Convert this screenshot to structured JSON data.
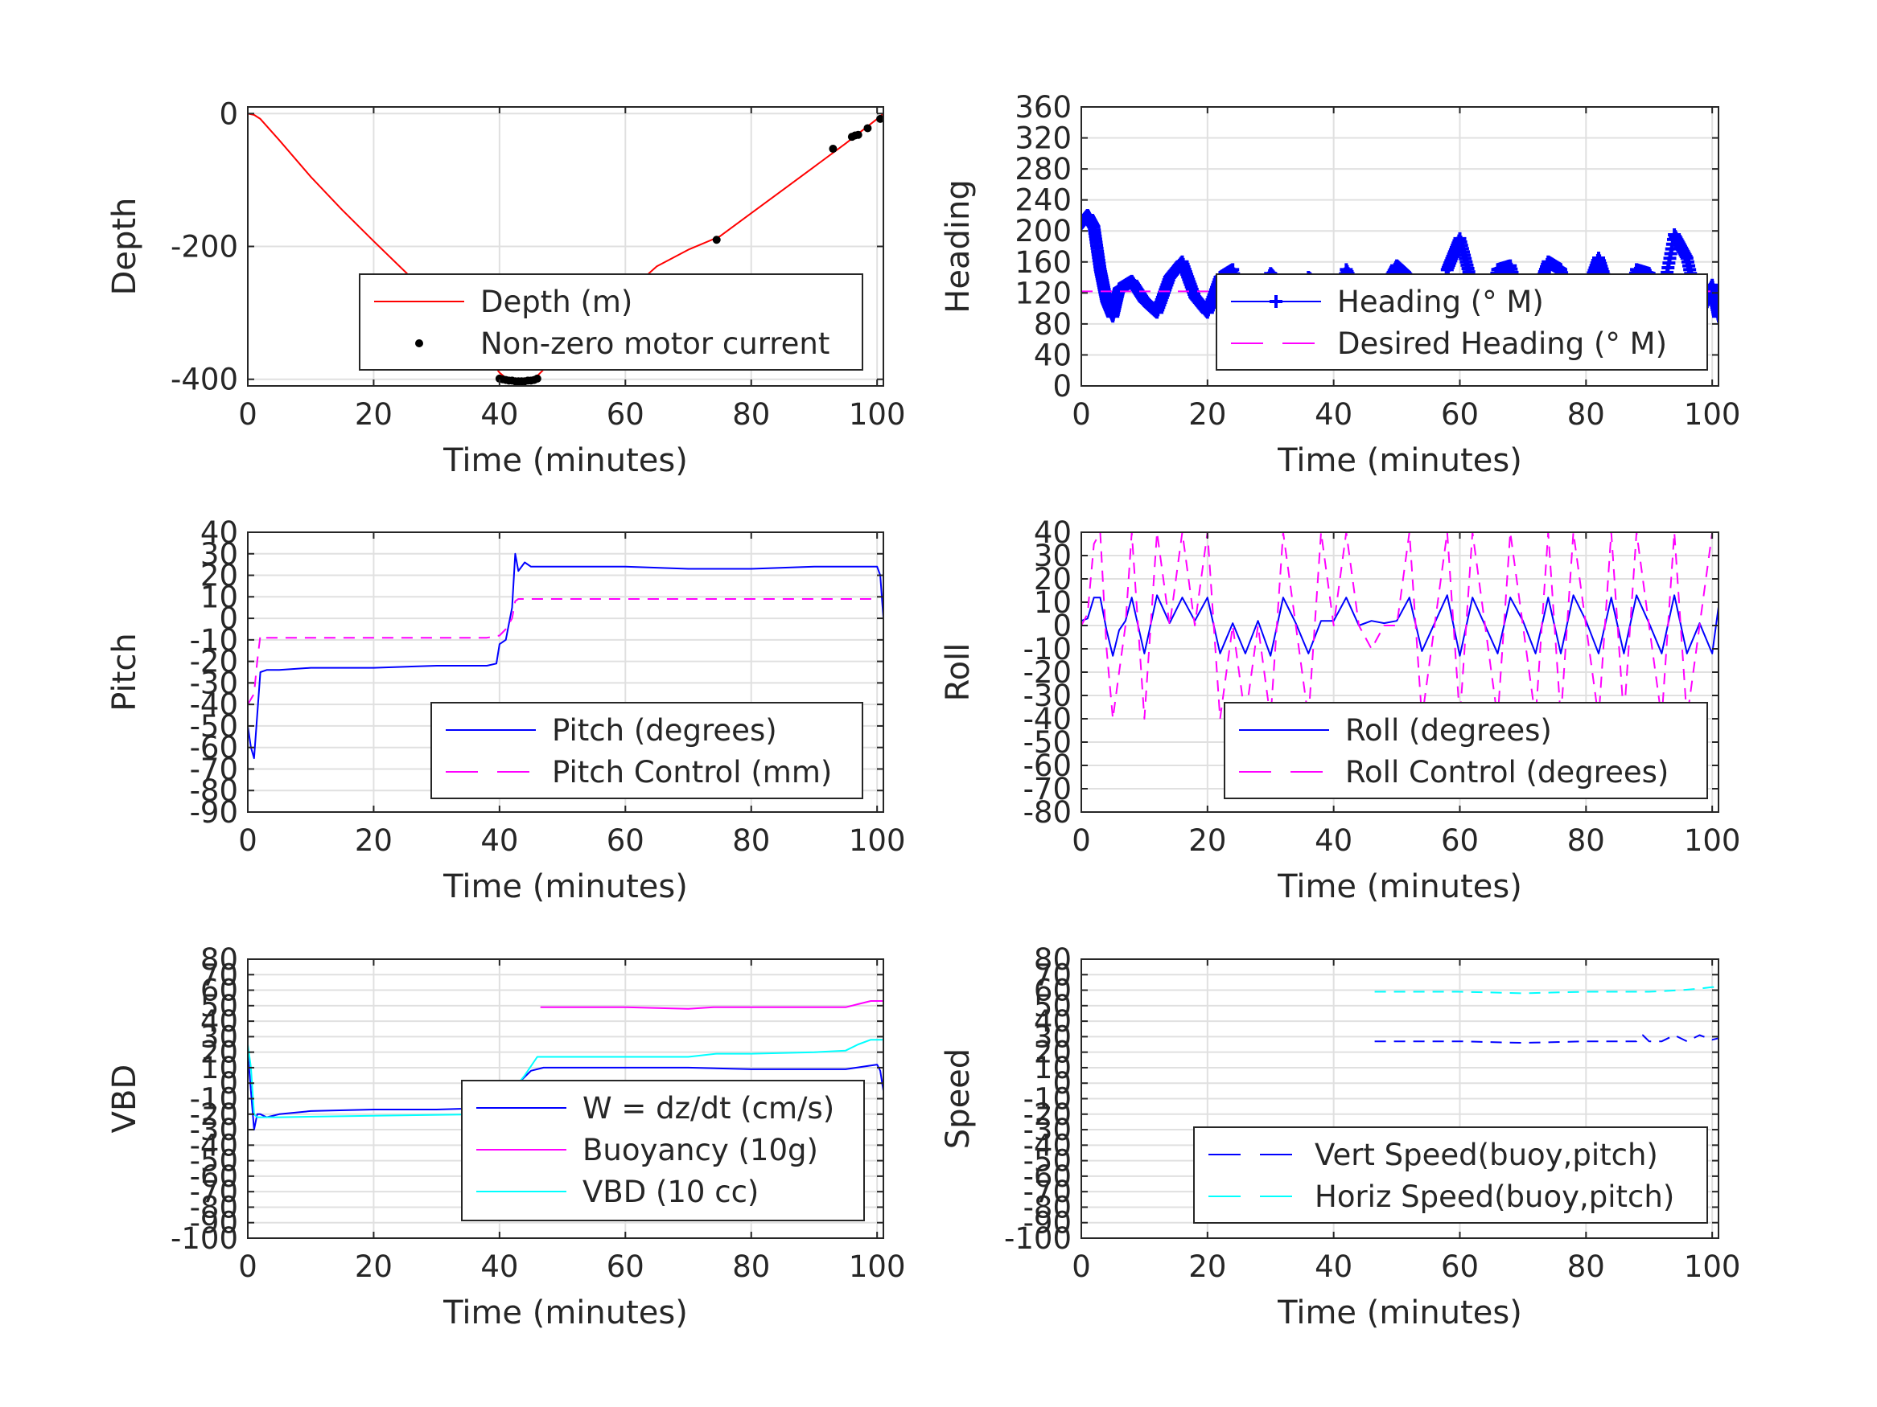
{
  "chart_data": [
    {
      "id": "depth",
      "type": "line",
      "xlabel": "Time (minutes)",
      "ylabel": "Depth",
      "xlim": [
        0,
        101
      ],
      "ylim": [
        -410,
        10
      ],
      "xticks": [
        0,
        20,
        40,
        60,
        80,
        100
      ],
      "yticks": [
        -400,
        -200,
        0
      ],
      "grid": true,
      "legend": {
        "position": "lower-right",
        "entries": [
          "Depth (m)",
          "Non-zero motor current"
        ]
      },
      "series": [
        {
          "name": "Depth (m)",
          "style": "line",
          "color": "#ff0000",
          "x": [
            0,
            1,
            2,
            5,
            10,
            15,
            20,
            25,
            30,
            35,
            38,
            40,
            41,
            42,
            43,
            44,
            45,
            46,
            50,
            55,
            60,
            65,
            70,
            75,
            80,
            85,
            90,
            95,
            100,
            101
          ],
          "y": [
            0,
            -2,
            -8,
            -40,
            -95,
            -145,
            -192,
            -238,
            -285,
            -332,
            -365,
            -390,
            -398,
            -402,
            -403,
            -403,
            -400,
            -395,
            -357,
            -315,
            -272,
            -230,
            -205,
            -185,
            -150,
            -115,
            -80,
            -45,
            -8,
            0
          ]
        },
        {
          "name": "Non-zero motor current",
          "style": "dots",
          "color": "#000000",
          "x": [
            40,
            40.5,
            41,
            41.5,
            42,
            42.5,
            43,
            43.5,
            44,
            44.5,
            45,
            45.5,
            46,
            74.5,
            93,
            96,
            96.5,
            97,
            98.5,
            100.5
          ],
          "y": [
            -399,
            -400,
            -401,
            -402,
            -402,
            -403,
            -403,
            -403,
            -403,
            -402,
            -402,
            -401,
            -399,
            -190,
            -53,
            -35,
            -33,
            -32,
            -22,
            -8
          ]
        }
      ]
    },
    {
      "id": "heading",
      "type": "line",
      "xlabel": "Time (minutes)",
      "ylabel": "Heading",
      "xlim": [
        0,
        101
      ],
      "ylim": [
        0,
        360
      ],
      "xticks": [
        0,
        20,
        40,
        60,
        80,
        100
      ],
      "yticks": [
        0,
        40,
        80,
        120,
        160,
        200,
        240,
        280,
        320,
        360
      ],
      "grid": true,
      "legend": {
        "position": "lower-right",
        "entries": [
          "Heading (° M)",
          "Desired Heading (° M)"
        ]
      },
      "series": [
        {
          "name": "Heading (° M)",
          "style": "plus-markers",
          "color": "#0000ff",
          "x": [
            0,
            1,
            2,
            3,
            4,
            5,
            6,
            8,
            10,
            12,
            14,
            16,
            18,
            20,
            22,
            24,
            26,
            28,
            30,
            32,
            34,
            36,
            38,
            40,
            42,
            44,
            46,
            48,
            50,
            52,
            54,
            56,
            58,
            60,
            62,
            64,
            66,
            68,
            70,
            72,
            74,
            76,
            78,
            80,
            82,
            84,
            86,
            88,
            90,
            92,
            94,
            96,
            98,
            100,
            101
          ],
          "y": [
            210,
            220,
            205,
            150,
            110,
            90,
            125,
            135,
            110,
            95,
            140,
            160,
            115,
            95,
            140,
            150,
            75,
            105,
            145,
            125,
            95,
            140,
            125,
            75,
            150,
            115,
            35,
            125,
            155,
            140,
            85,
            50,
            150,
            190,
            130,
            85,
            150,
            155,
            95,
            115,
            160,
            150,
            95,
            120,
            165,
            115,
            85,
            150,
            145,
            110,
            195,
            165,
            95,
            130,
            90
          ]
        },
        {
          "name": "Desired Heading (° M)",
          "style": "dashed",
          "color": "#ff00ff",
          "x": [
            0,
            101
          ],
          "y": [
            122,
            122
          ]
        }
      ]
    },
    {
      "id": "pitch",
      "type": "line",
      "xlabel": "Time (minutes)",
      "ylabel": "Pitch",
      "xlim": [
        0,
        101
      ],
      "ylim": [
        -90,
        40
      ],
      "xticks": [
        0,
        20,
        40,
        60,
        80,
        100
      ],
      "yticks": [
        -90,
        -80,
        -70,
        -60,
        -50,
        -40,
        -30,
        -20,
        -10,
        0,
        10,
        20,
        30,
        40
      ],
      "grid": true,
      "legend": {
        "position": "lower-right",
        "entries": [
          "Pitch (degrees)",
          "Pitch Control (mm)"
        ]
      },
      "series": [
        {
          "name": "Pitch (degrees)",
          "style": "line",
          "color": "#0000ff",
          "x": [
            0,
            0.5,
            1,
            1.5,
            2,
            3,
            5,
            10,
            20,
            30,
            38,
            39.5,
            40,
            41,
            42,
            42.5,
            43,
            44,
            45,
            50,
            60,
            70,
            80,
            90,
            95,
            100,
            100.5,
            101
          ],
          "y": [
            -50,
            -60,
            -65,
            -45,
            -25,
            -24,
            -24,
            -23,
            -23,
            -22,
            -22,
            -21,
            -12,
            -10,
            5,
            30,
            22,
            26,
            24,
            24,
            24,
            23,
            23,
            24,
            24,
            24,
            20,
            0
          ]
        },
        {
          "name": "Pitch Control (mm)",
          "style": "dashed",
          "color": "#ff00ff",
          "x": [
            0,
            1,
            1.5,
            2,
            3,
            5,
            20,
            38,
            40,
            41,
            42,
            42.5,
            43,
            45,
            60,
            80,
            100
          ],
          "y": [
            -40,
            -35,
            -20,
            -8,
            -9,
            -9,
            -9,
            -9,
            -8,
            -5,
            0,
            8,
            9,
            9,
            9,
            9,
            9
          ]
        }
      ]
    },
    {
      "id": "roll",
      "type": "line",
      "xlabel": "Time (minutes)",
      "ylabel": "Roll",
      "xlim": [
        0,
        101
      ],
      "ylim": [
        -80,
        40
      ],
      "xticks": [
        0,
        20,
        40,
        60,
        80,
        100
      ],
      "yticks": [
        -80,
        -70,
        -60,
        -50,
        -40,
        -30,
        -20,
        -10,
        0,
        10,
        20,
        30,
        40
      ],
      "grid": true,
      "legend": {
        "position": "lower-right",
        "entries": [
          "Roll (degrees)",
          "Roll Control (degrees)"
        ]
      },
      "series": [
        {
          "name": "Roll (degrees)",
          "style": "line",
          "color": "#0000ff",
          "x": [
            0,
            1,
            2,
            3,
            4,
            5,
            6,
            7,
            8,
            10,
            12,
            14,
            16,
            18,
            20,
            22,
            24,
            26,
            28,
            30,
            32,
            34,
            36,
            38,
            40,
            42,
            44,
            46,
            48,
            50,
            52,
            54,
            56,
            58,
            60,
            62,
            64,
            66,
            68,
            70,
            72,
            74,
            76,
            78,
            80,
            82,
            84,
            86,
            88,
            90,
            92,
            94,
            96,
            98,
            100,
            101
          ],
          "y": [
            2,
            3,
            12,
            12,
            -2,
            -13,
            -2,
            2,
            12,
            -12,
            13,
            1,
            12,
            2,
            12,
            -12,
            1,
            -12,
            2,
            -13,
            12,
            1,
            -12,
            2,
            2,
            12,
            0,
            2,
            1,
            2,
            12,
            -11,
            1,
            13,
            -13,
            12,
            0,
            -12,
            12,
            2,
            -12,
            12,
            -12,
            13,
            2,
            -12,
            12,
            -12,
            13,
            1,
            -12,
            13,
            -12,
            1,
            -12,
            8
          ]
        },
        {
          "name": "Roll Control (degrees)",
          "style": "dashed",
          "color": "#ff00ff",
          "x": [
            0,
            1,
            2,
            3,
            4,
            5,
            6,
            7,
            8,
            10,
            12,
            14,
            16,
            18,
            20,
            22,
            24,
            26,
            28,
            30,
            32,
            34,
            36,
            38,
            40,
            42,
            44,
            46,
            48,
            50,
            52,
            54,
            56,
            58,
            60,
            62,
            64,
            66,
            68,
            70,
            72,
            74,
            76,
            78,
            80,
            82,
            84,
            86,
            88,
            90,
            92,
            94,
            96,
            98,
            100,
            101
          ],
          "y": [
            0,
            5,
            35,
            40,
            -10,
            -40,
            -20,
            0,
            40,
            -40,
            40,
            0,
            40,
            0,
            40,
            -40,
            0,
            -40,
            0,
            -40,
            40,
            0,
            -40,
            40,
            0,
            40,
            0,
            -10,
            0,
            0,
            40,
            -40,
            0,
            40,
            -40,
            40,
            0,
            -40,
            40,
            0,
            -40,
            40,
            -40,
            40,
            0,
            -40,
            40,
            -40,
            40,
            0,
            -40,
            40,
            -40,
            0,
            40,
            40
          ]
        }
      ]
    },
    {
      "id": "vbd",
      "type": "line",
      "xlabel": "Time (minutes)",
      "ylabel": "VBD",
      "xlim": [
        0,
        101
      ],
      "ylim": [
        -100,
        80
      ],
      "xticks": [
        0,
        20,
        40,
        60,
        80,
        100
      ],
      "yticks": [
        -100,
        -90,
        -80,
        -70,
        -60,
        -50,
        -40,
        -30,
        -20,
        -10,
        0,
        10,
        20,
        30,
        40,
        50,
        60,
        70,
        80
      ],
      "grid": true,
      "legend": {
        "position": "lower-right",
        "entries": [
          "W = dz/dt (cm/s)",
          "Buoyancy (10g)",
          "VBD (10 cc)"
        ]
      },
      "series": [
        {
          "name": "W = dz/dt (cm/s)",
          "style": "line",
          "color": "#0000ff",
          "x": [
            0,
            0.5,
            1,
            1.5,
            2,
            3,
            5,
            10,
            20,
            30,
            38,
            39.5,
            40,
            41,
            42,
            43,
            45,
            47,
            50,
            60,
            70,
            80,
            90,
            95,
            100,
            100.5,
            101
          ],
          "y": [
            20,
            -5,
            -30,
            -20,
            -20,
            -22,
            -20,
            -18,
            -17,
            -17,
            -16,
            -15,
            -10,
            -8,
            -5,
            0,
            8,
            10,
            10,
            10,
            10,
            9,
            9,
            9,
            12,
            8,
            -5
          ]
        },
        {
          "name": "Buoyancy (10g)",
          "style": "line",
          "color": "#ff00ff",
          "x": [
            46.5,
            50,
            60,
            70,
            74,
            80,
            90,
            95,
            97,
            99,
            101
          ],
          "y": [
            49,
            49,
            49,
            48,
            49,
            49,
            49,
            49,
            51,
            53,
            53
          ]
        },
        {
          "name": "VBD (10 cc)",
          "style": "line",
          "color": "#00ffff",
          "x": [
            0,
            0.5,
            1,
            1.5,
            2,
            3,
            5,
            20,
            39,
            40,
            42,
            44,
            46,
            50,
            60,
            70,
            74.5,
            80,
            90,
            95,
            97,
            99,
            101
          ],
          "y": [
            25,
            10,
            -20,
            -22,
            -22,
            -22,
            -22,
            -21,
            -20,
            -20,
            -5,
            5,
            17,
            17,
            17,
            17,
            19,
            19,
            20,
            21,
            25,
            28,
            28
          ]
        }
      ]
    },
    {
      "id": "speed",
      "type": "line",
      "xlabel": "Time (minutes)",
      "ylabel": "Speed",
      "xlim": [
        0,
        101
      ],
      "ylim": [
        -100,
        80
      ],
      "xticks": [
        0,
        20,
        40,
        60,
        80,
        100
      ],
      "yticks": [
        -100,
        -90,
        -80,
        -70,
        -60,
        -50,
        -40,
        -30,
        -20,
        -10,
        0,
        10,
        20,
        30,
        40,
        50,
        60,
        70,
        80
      ],
      "grid": true,
      "legend": {
        "position": "lower-right",
        "entries": [
          "Vert Speed(buoy,pitch)",
          "Horiz Speed(buoy,pitch)"
        ]
      },
      "series": [
        {
          "name": "Vert Speed(buoy,pitch)",
          "style": "dashed",
          "color": "#0000ff",
          "x": [
            46.5,
            50,
            60,
            70,
            80,
            88,
            89,
            90,
            92,
            94,
            96,
            98,
            100,
            101
          ],
          "y": [
            27,
            27,
            27,
            26,
            27,
            27,
            31,
            27,
            27,
            31,
            27,
            31,
            28,
            29
          ]
        },
        {
          "name": "Horiz Speed(buoy,pitch)",
          "style": "dashed",
          "color": "#00ffff",
          "x": [
            46.5,
            50,
            60,
            70,
            80,
            90,
            95,
            98,
            100,
            101
          ],
          "y": [
            59,
            59,
            59,
            58,
            59,
            59,
            60,
            61,
            62,
            62
          ]
        }
      ]
    }
  ]
}
